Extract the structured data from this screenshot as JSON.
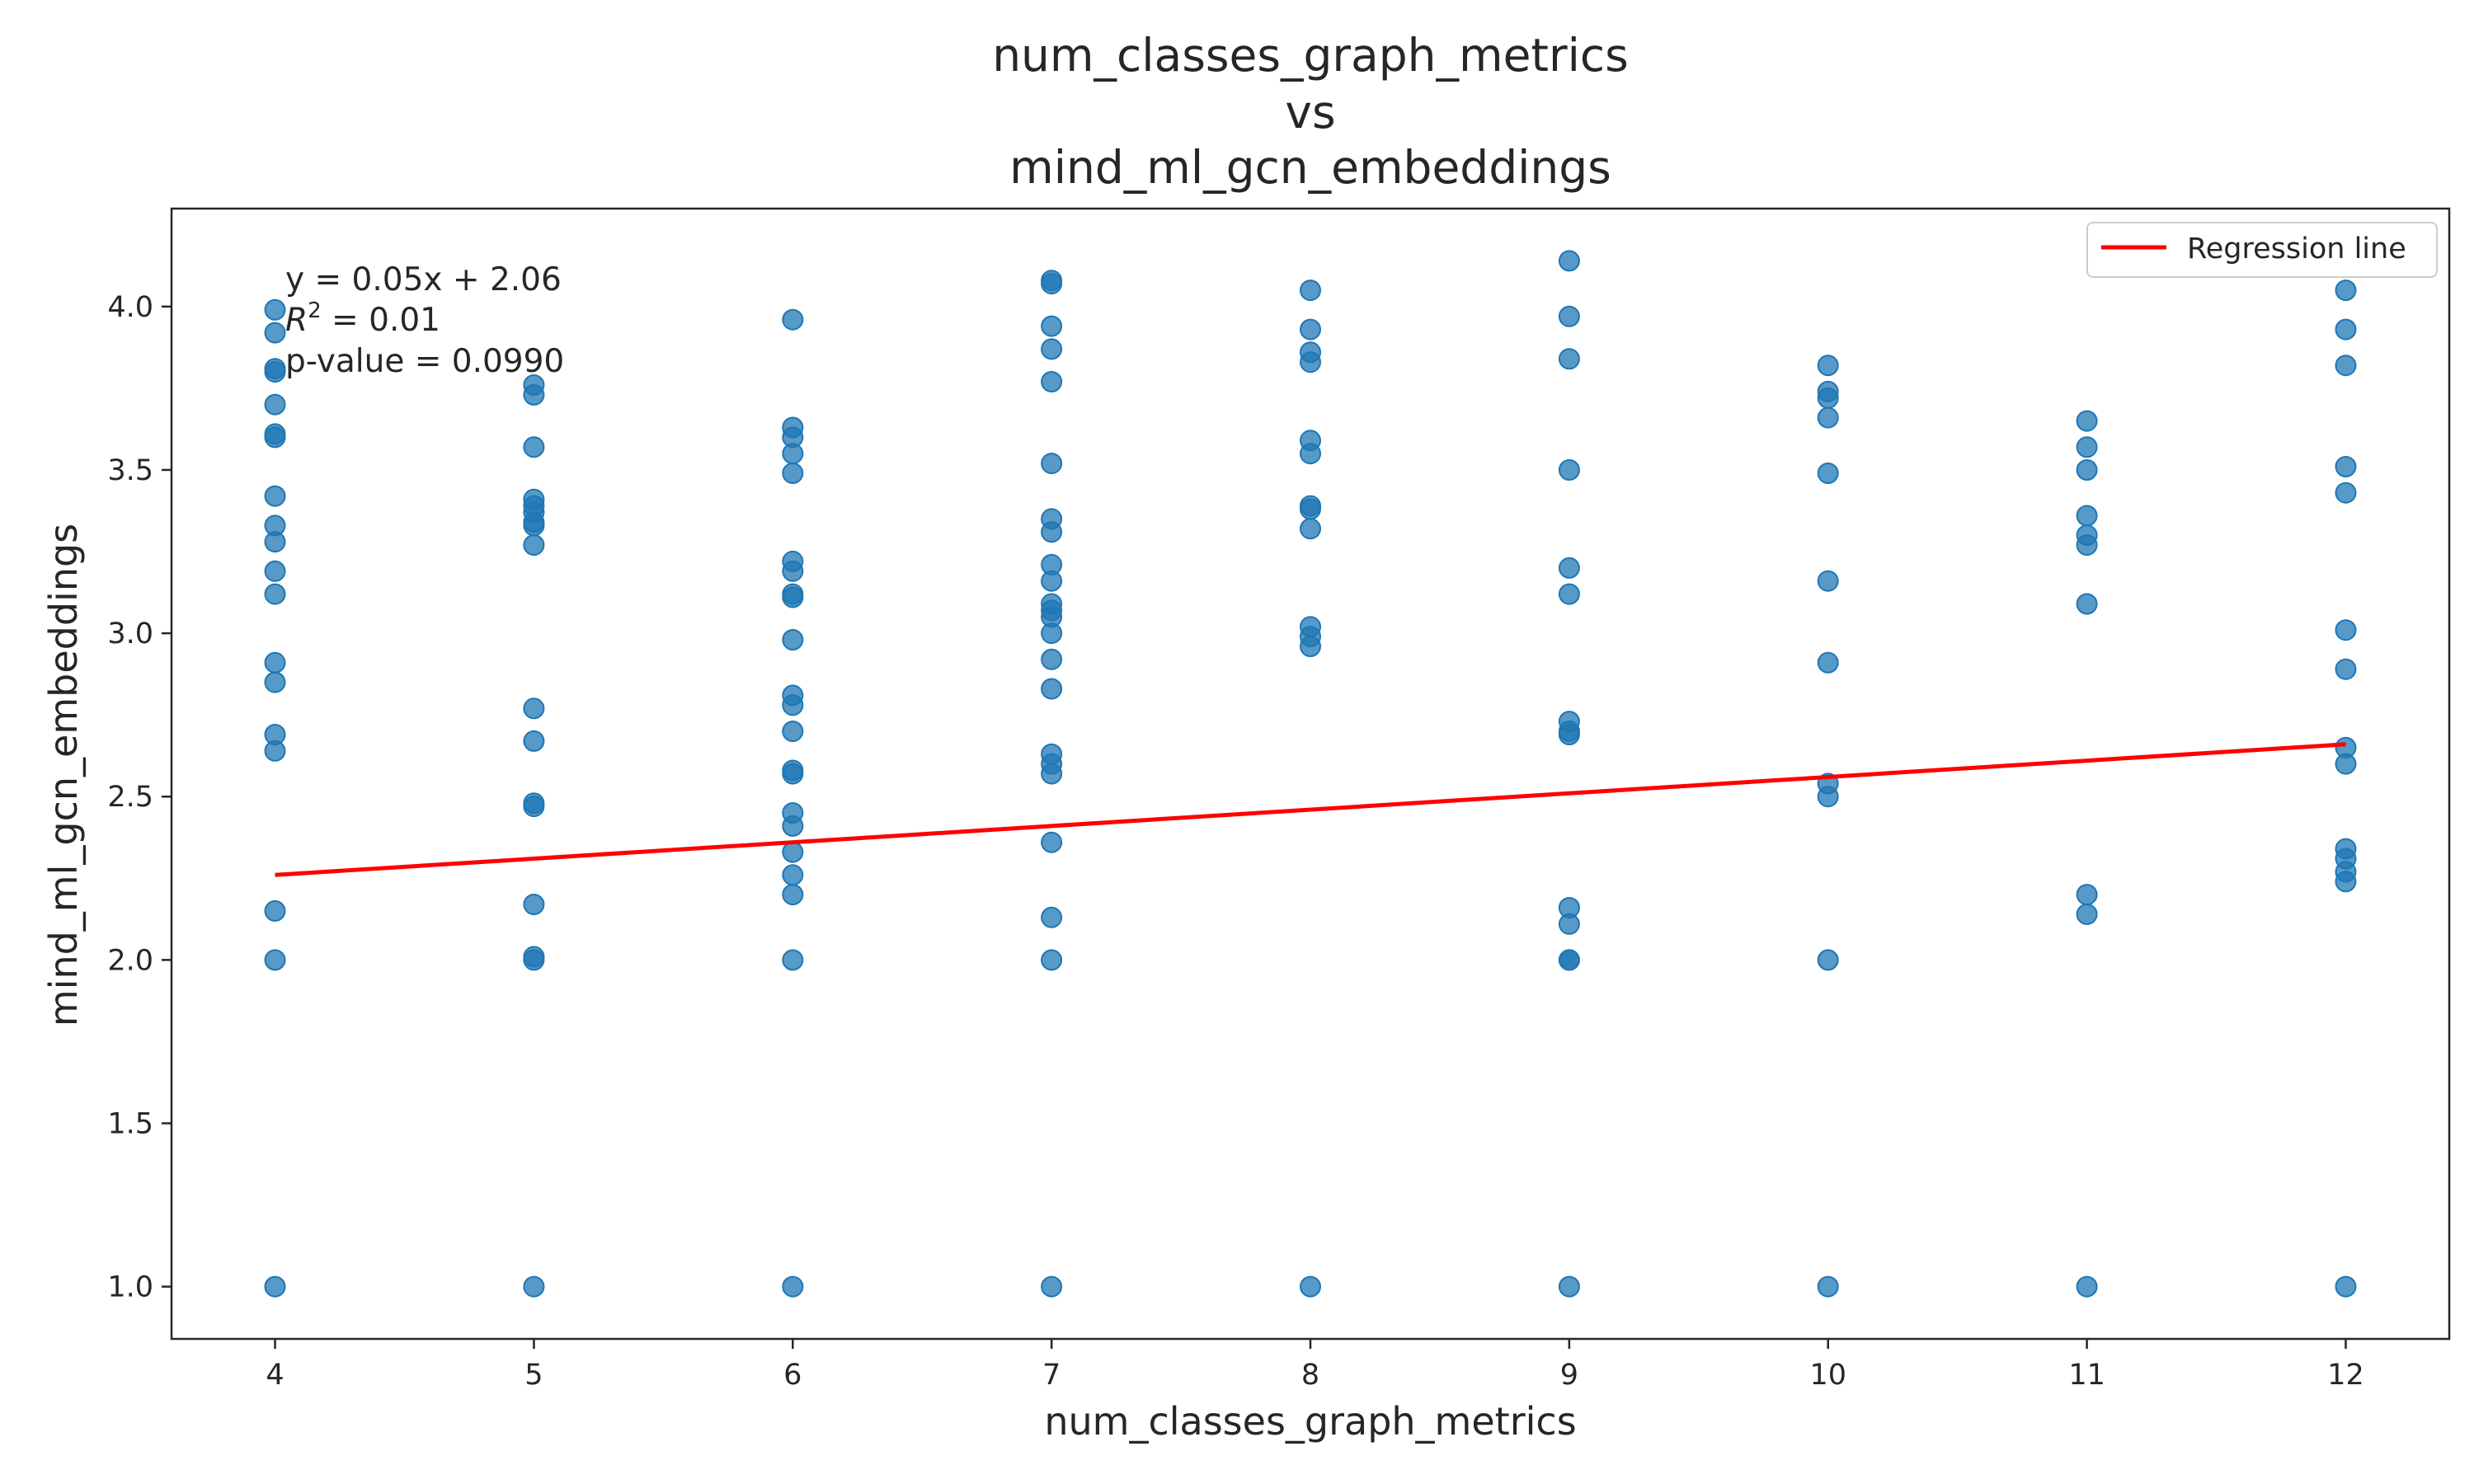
{
  "chart_data": {
    "type": "scatter",
    "title_lines": [
      "num_classes_graph_metrics",
      "vs",
      "mind_ml_gcn_embeddings"
    ],
    "xlabel": "num_classes_graph_metrics",
    "ylabel": "mind_ml_gcn_embeddings",
    "xlim": [
      3.6,
      12.4
    ],
    "ylim": [
      0.84,
      4.3
    ],
    "xticks": [
      4,
      5,
      6,
      7,
      8,
      9,
      10,
      11,
      12
    ],
    "yticks": [
      1.0,
      1.5,
      2.0,
      2.5,
      3.0,
      3.5,
      4.0
    ],
    "ytick_labels": [
      "1.0",
      "1.5",
      "2.0",
      "2.5",
      "3.0",
      "3.5",
      "4.0"
    ],
    "grid": false,
    "legend": {
      "position": "top-right",
      "entries": [
        "Regression line"
      ]
    },
    "annotation": {
      "equation": "y = 0.05x + 2.06",
      "r2_value": " = 0.01",
      "pvalue": "p-value = 0.0990"
    },
    "colors": {
      "points": "#1f77b4",
      "regression": "#ff0000"
    },
    "regression": {
      "slope": 0.05,
      "intercept": 2.06,
      "x_range": [
        4,
        12
      ]
    },
    "series": [
      {
        "points": [
          [
            4,
            3.99
          ],
          [
            4,
            3.92
          ],
          [
            4,
            3.81
          ],
          [
            4,
            3.8
          ],
          [
            4,
            3.7
          ],
          [
            4,
            3.61
          ],
          [
            4,
            3.6
          ],
          [
            4,
            3.42
          ],
          [
            4,
            3.33
          ],
          [
            4,
            3.28
          ],
          [
            4,
            3.19
          ],
          [
            4,
            3.12
          ],
          [
            4,
            2.91
          ],
          [
            4,
            2.85
          ],
          [
            4,
            2.69
          ],
          [
            4,
            2.64
          ],
          [
            4,
            2.15
          ],
          [
            4,
            2.0
          ],
          [
            4,
            1.0
          ],
          [
            5,
            3.76
          ],
          [
            5,
            3.73
          ],
          [
            5,
            3.57
          ],
          [
            5,
            3.41
          ],
          [
            5,
            3.39
          ],
          [
            5,
            3.37
          ],
          [
            5,
            3.33
          ],
          [
            5,
            3.34
          ],
          [
            5,
            3.27
          ],
          [
            5,
            2.77
          ],
          [
            5,
            2.67
          ],
          [
            5,
            2.48
          ],
          [
            5,
            2.47
          ],
          [
            5,
            2.17
          ],
          [
            5,
            2.01
          ],
          [
            5,
            2.0
          ],
          [
            5,
            1.0
          ],
          [
            6,
            3.96
          ],
          [
            6,
            3.63
          ],
          [
            6,
            3.6
          ],
          [
            6,
            3.55
          ],
          [
            6,
            3.49
          ],
          [
            6,
            3.22
          ],
          [
            6,
            3.19
          ],
          [
            6,
            3.12
          ],
          [
            6,
            3.11
          ],
          [
            6,
            2.98
          ],
          [
            6,
            2.81
          ],
          [
            6,
            2.78
          ],
          [
            6,
            2.7
          ],
          [
            6,
            2.58
          ],
          [
            6,
            2.57
          ],
          [
            6,
            2.45
          ],
          [
            6,
            2.41
          ],
          [
            6,
            2.33
          ],
          [
            6,
            2.26
          ],
          [
            6,
            2.2
          ],
          [
            6,
            2.0
          ],
          [
            6,
            1.0
          ],
          [
            7,
            4.08
          ],
          [
            7,
            4.07
          ],
          [
            7,
            3.94
          ],
          [
            7,
            3.87
          ],
          [
            7,
            3.77
          ],
          [
            7,
            3.52
          ],
          [
            7,
            3.35
          ],
          [
            7,
            3.31
          ],
          [
            7,
            3.21
          ],
          [
            7,
            3.16
          ],
          [
            7,
            3.09
          ],
          [
            7,
            3.07
          ],
          [
            7,
            3.05
          ],
          [
            7,
            3.0
          ],
          [
            7,
            2.92
          ],
          [
            7,
            2.83
          ],
          [
            7,
            2.63
          ],
          [
            7,
            2.6
          ],
          [
            7,
            2.57
          ],
          [
            7,
            2.36
          ],
          [
            7,
            2.13
          ],
          [
            7,
            2.0
          ],
          [
            7,
            1.0
          ],
          [
            8,
            4.05
          ],
          [
            8,
            3.93
          ],
          [
            8,
            3.86
          ],
          [
            8,
            3.83
          ],
          [
            8,
            3.59
          ],
          [
            8,
            3.55
          ],
          [
            8,
            3.39
          ],
          [
            8,
            3.38
          ],
          [
            8,
            3.32
          ],
          [
            8,
            3.02
          ],
          [
            8,
            2.99
          ],
          [
            8,
            2.96
          ],
          [
            8,
            1.0
          ],
          [
            9,
            4.14
          ],
          [
            9,
            3.97
          ],
          [
            9,
            3.84
          ],
          [
            9,
            3.5
          ],
          [
            9,
            3.2
          ],
          [
            9,
            3.12
          ],
          [
            9,
            2.73
          ],
          [
            9,
            2.7
          ],
          [
            9,
            2.69
          ],
          [
            9,
            2.16
          ],
          [
            9,
            2.11
          ],
          [
            9,
            2.0
          ],
          [
            9,
            2.0
          ],
          [
            9,
            1.0
          ],
          [
            10,
            3.82
          ],
          [
            10,
            3.74
          ],
          [
            10,
            3.72
          ],
          [
            10,
            3.66
          ],
          [
            10,
            3.49
          ],
          [
            10,
            3.16
          ],
          [
            10,
            2.91
          ],
          [
            10,
            2.54
          ],
          [
            10,
            2.5
          ],
          [
            10,
            2.0
          ],
          [
            10,
            1.0
          ],
          [
            11,
            3.65
          ],
          [
            11,
            3.57
          ],
          [
            11,
            3.5
          ],
          [
            11,
            3.36
          ],
          [
            11,
            3.3
          ],
          [
            11,
            3.27
          ],
          [
            11,
            3.09
          ],
          [
            11,
            2.2
          ],
          [
            11,
            2.14
          ],
          [
            11,
            1.0
          ],
          [
            12,
            4.05
          ],
          [
            12,
            3.93
          ],
          [
            12,
            3.82
          ],
          [
            12,
            3.51
          ],
          [
            12,
            3.43
          ],
          [
            12,
            3.01
          ],
          [
            12,
            2.89
          ],
          [
            12,
            2.65
          ],
          [
            12,
            2.6
          ],
          [
            12,
            2.34
          ],
          [
            12,
            2.31
          ],
          [
            12,
            2.27
          ],
          [
            12,
            2.24
          ],
          [
            12,
            1.0
          ]
        ]
      }
    ]
  }
}
